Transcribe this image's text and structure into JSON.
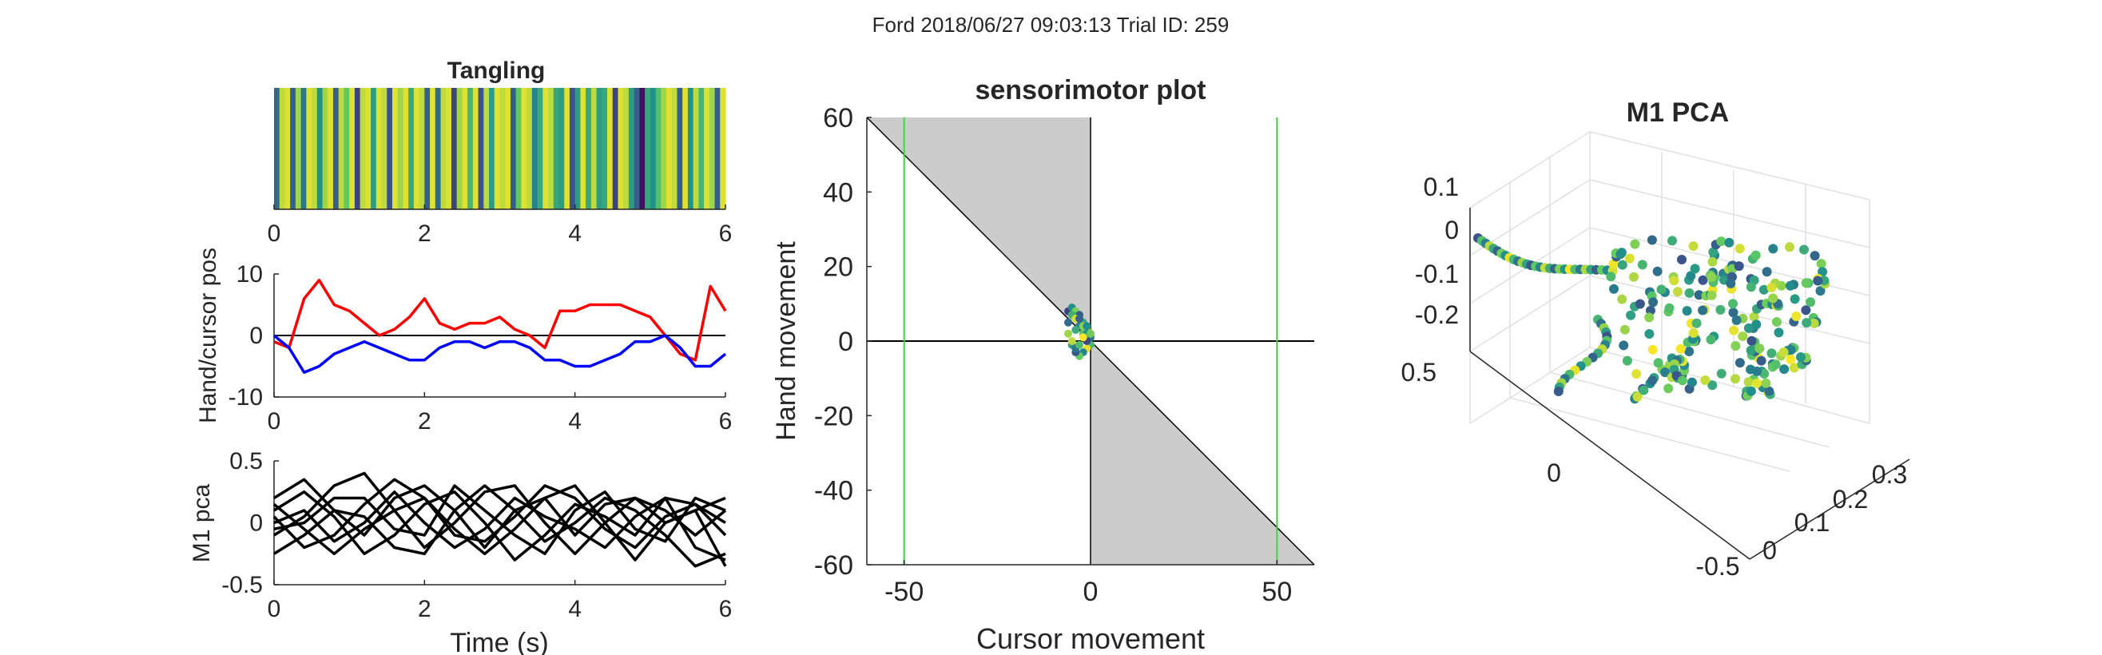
{
  "figure_title": "Ford 2018/06/27 09:03:13 Trial ID: 259",
  "colors": {
    "red": "#ff0000",
    "blue": "#0000ff",
    "black": "#000000",
    "green": "#33dd33",
    "shade": "#cccccc",
    "viridis": [
      "#440154",
      "#3b528b",
      "#21918c",
      "#5ec962",
      "#fde725"
    ]
  },
  "chart_data": [
    {
      "id": "tangling",
      "type": "heatmap",
      "title": "Tangling",
      "xlim": [
        0,
        6
      ],
      "xticks": [
        "0",
        "2",
        "4",
        "6"
      ],
      "colormap": "viridis",
      "values": [
        0.35,
        0.9,
        0.95,
        0.3,
        0.85,
        0.4,
        0.95,
        0.9,
        0.5,
        0.85,
        0.95,
        0.3,
        0.9,
        0.75,
        0.95,
        0.2,
        0.9,
        0.95,
        0.55,
        0.95,
        0.9,
        0.25,
        0.95,
        0.85,
        0.95,
        0.6,
        0.95,
        0.9,
        0.3,
        0.95,
        0.35,
        0.9,
        0.95,
        0.2,
        0.85,
        0.95,
        0.65,
        0.95,
        0.25,
        0.9,
        0.55,
        0.95,
        0.9,
        0.95,
        0.3,
        0.75,
        0.95,
        0.9,
        0.45,
        0.6,
        0.95,
        0.9,
        0.6,
        0.55,
        0.95,
        0.25,
        0.55,
        0.95,
        0.6,
        0.9,
        0.55,
        0.6,
        0.95,
        0.2,
        0.95,
        0.9,
        0.55,
        0.3,
        0.05,
        0.6,
        0.5,
        0.7,
        0.85,
        0.95,
        0.9,
        0.3,
        0.95,
        0.5,
        0.9,
        0.65,
        0.95,
        0.85,
        0.3,
        0.95
      ]
    },
    {
      "id": "handcursor",
      "type": "line",
      "ylabel": "Hand/cursor pos",
      "xlim": [
        0,
        6
      ],
      "ylim": [
        -10,
        10
      ],
      "xticks": [
        "0",
        "2",
        "4",
        "6"
      ],
      "yticks": [
        "-10",
        "0",
        "10"
      ],
      "x": [
        0.0,
        0.2,
        0.4,
        0.6,
        0.8,
        1.0,
        1.2,
        1.4,
        1.6,
        1.8,
        2.0,
        2.2,
        2.4,
        2.6,
        2.8,
        3.0,
        3.2,
        3.4,
        3.6,
        3.8,
        4.0,
        4.2,
        4.4,
        4.6,
        4.8,
        5.0,
        5.2,
        5.4,
        5.6,
        5.8,
        6.0
      ],
      "series": [
        {
          "color": "red",
          "values": [
            -1,
            -2,
            6,
            9,
            5,
            4,
            2,
            0,
            1,
            3,
            6,
            2,
            1,
            2,
            2,
            3,
            1,
            0,
            -2,
            4,
            4,
            5,
            5,
            5,
            4,
            3,
            0,
            -3,
            -4,
            8,
            4
          ]
        },
        {
          "color": "blue",
          "values": [
            0,
            -2,
            -6,
            -5,
            -3,
            -2,
            -1,
            -2,
            -3,
            -4,
            -4,
            -2,
            -1,
            -1,
            -2,
            -1,
            -1,
            -2,
            -4,
            -4,
            -5,
            -5,
            -4,
            -3,
            -1,
            -1,
            0,
            -2,
            -5,
            -5,
            -3
          ]
        }
      ]
    },
    {
      "id": "m1pca",
      "type": "line",
      "xlabel": "Time (s)",
      "ylabel": "M1 pca",
      "xlim": [
        0,
        6
      ],
      "ylim": [
        -0.5,
        0.5
      ],
      "xticks": [
        "0",
        "2",
        "4",
        "6"
      ],
      "yticks": [
        "-0.5",
        "0",
        "0.5"
      ],
      "x": [
        0.0,
        0.4,
        0.8,
        1.2,
        1.6,
        2.0,
        2.4,
        2.8,
        3.2,
        3.6,
        4.0,
        4.4,
        4.8,
        5.2,
        5.6,
        6.0
      ],
      "series": [
        {
          "values": [
            0.2,
            0.35,
            0.1,
            -0.1,
            0.2,
            0.3,
            0.1,
            -0.2,
            0.1,
            0.2,
            -0.1,
            0.15,
            0.2,
            0.0,
            0.1,
            0.2
          ]
        },
        {
          "values": [
            -0.1,
            0.05,
            0.3,
            0.4,
            0.1,
            -0.2,
            0.0,
            0.25,
            0.3,
            0.0,
            -0.25,
            0.0,
            0.2,
            0.1,
            -0.1,
            0.1
          ]
        },
        {
          "values": [
            0.05,
            -0.2,
            -0.1,
            0.15,
            0.35,
            0.2,
            -0.1,
            -0.15,
            0.05,
            0.3,
            0.2,
            -0.05,
            -0.2,
            0.05,
            0.15,
            0.0
          ]
        },
        {
          "values": [
            -0.25,
            -0.1,
            0.1,
            0.05,
            -0.2,
            -0.25,
            0.1,
            0.3,
            0.1,
            -0.15,
            0.0,
            0.2,
            0.1,
            -0.1,
            -0.35,
            -0.25
          ]
        },
        {
          "values": [
            0.1,
            0.25,
            0.05,
            -0.25,
            -0.1,
            0.15,
            0.25,
            0.0,
            -0.3,
            -0.1,
            0.15,
            0.05,
            -0.1,
            0.2,
            0.15,
            -0.1
          ]
        },
        {
          "values": [
            0.0,
            0.1,
            -0.15,
            0.0,
            0.25,
            0.0,
            -0.2,
            -0.05,
            0.2,
            0.05,
            -0.05,
            -0.2,
            0.05,
            0.2,
            -0.2,
            -0.3
          ]
        },
        {
          "values": [
            -0.05,
            0.0,
            0.2,
            0.2,
            -0.05,
            -0.1,
            0.3,
            0.1,
            -0.1,
            -0.25,
            0.1,
            0.25,
            -0.05,
            -0.15,
            0.2,
            0.1
          ]
        },
        {
          "values": [
            0.15,
            -0.05,
            -0.25,
            -0.05,
            0.1,
            0.2,
            -0.05,
            -0.25,
            -0.05,
            0.2,
            0.3,
            0.0,
            -0.3,
            0.0,
            0.1,
            -0.35
          ]
        }
      ]
    },
    {
      "id": "sensorimotor",
      "type": "scatter",
      "title": "sensorimotor plot",
      "xlabel": "Cursor movement",
      "ylabel": "Hand movement",
      "xlim": [
        -60,
        60
      ],
      "ylim": [
        -60,
        60
      ],
      "xticks": [
        "-50",
        "0",
        "50"
      ],
      "yticks": [
        "60",
        "40",
        "20",
        "0",
        "-20",
        "-40",
        "-60"
      ],
      "green_lines_x": [
        -50,
        50
      ],
      "points": [
        [
          -6,
          8
        ],
        [
          -5,
          9
        ],
        [
          -4,
          8
        ],
        [
          -3,
          7
        ],
        [
          -2,
          5
        ],
        [
          -1,
          3
        ],
        [
          0,
          1
        ],
        [
          0,
          -1
        ],
        [
          -1,
          -2
        ],
        [
          -2,
          -3
        ],
        [
          -3,
          -4
        ],
        [
          -4,
          -3
        ],
        [
          -5,
          -1
        ],
        [
          -6,
          2
        ],
        [
          -6,
          5
        ],
        [
          -5,
          7
        ],
        [
          -4,
          6
        ],
        [
          -3,
          4
        ],
        [
          -2,
          2
        ],
        [
          -1,
          0
        ],
        [
          -1,
          2
        ],
        [
          -2,
          4
        ],
        [
          -3,
          6
        ],
        [
          -4,
          3
        ],
        [
          -5,
          0
        ],
        [
          -4,
          -2
        ],
        [
          -3,
          -1
        ],
        [
          -2,
          1
        ],
        [
          -1,
          4
        ],
        [
          0,
          2
        ]
      ]
    },
    {
      "id": "pca3d",
      "type": "scatter",
      "title": "M1 PCA",
      "zticks": [
        "0.1",
        "0",
        "-0.1",
        "-0.2"
      ],
      "yticks_left": [
        "0.5",
        "0"
      ],
      "xticks": [
        "-0.5",
        "0",
        "0.1",
        "0.2",
        "0.3"
      ]
    }
  ]
}
